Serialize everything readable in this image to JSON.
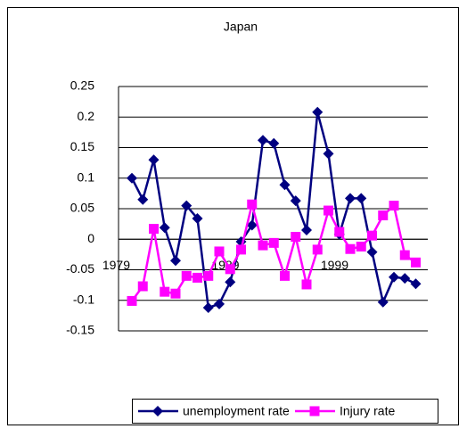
{
  "chart_data": {
    "type": "line",
    "title": "Japan",
    "categories": [
      "1979",
      null,
      null,
      null,
      null,
      null,
      null,
      null,
      null,
      null,
      "1989",
      null,
      null,
      null,
      null,
      null,
      null,
      null,
      null,
      null,
      "1999",
      null,
      null,
      null,
      null,
      null,
      null
    ],
    "series": [
      {
        "name": "unemployment rate",
        "color": "#000080",
        "marker": "diamond",
        "values": [
          0.1,
          0.065,
          0.13,
          0.019,
          -0.035,
          0.055,
          0.034,
          -0.112,
          -0.106,
          -0.07,
          -0.004,
          0.023,
          0.162,
          0.157,
          0.089,
          0.063,
          0.015,
          0.208,
          0.14,
          0.008,
          0.067,
          0.067,
          -0.021,
          -0.103,
          -0.062,
          -0.064,
          -0.073
        ]
      },
      {
        "name": "Injury rate",
        "color": "#ff00ff",
        "marker": "square",
        "values": [
          -0.101,
          -0.077,
          0.017,
          -0.086,
          -0.089,
          -0.06,
          -0.063,
          -0.06,
          -0.02,
          -0.049,
          -0.017,
          0.057,
          -0.01,
          -0.006,
          -0.06,
          0.004,
          -0.074,
          -0.017,
          0.047,
          0.012,
          -0.016,
          -0.012,
          0.006,
          0.039,
          0.055,
          -0.026,
          -0.038
        ]
      }
    ],
    "ylim": [
      -0.15,
      0.25
    ],
    "yticks": [
      -0.15,
      -0.1,
      -0.05,
      0,
      0.05,
      0.1,
      0.15,
      0.2,
      0.25
    ],
    "grid": true,
    "legend": "bottom"
  }
}
